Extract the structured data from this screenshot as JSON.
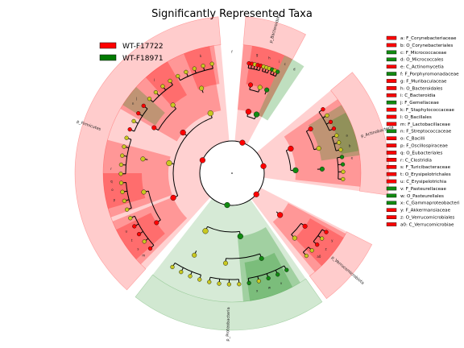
{
  "chart_data": {
    "type": "cladogram",
    "title": "Significantly Represented Taxa",
    "legend": [
      {
        "name": "WT-F17722",
        "color": "#ff0000"
      },
      {
        "name": "WT-F18971",
        "color": "#007a00"
      }
    ],
    "colors": {
      "red": "#ff0000",
      "green": "#118a11",
      "neutral": "#c8c820",
      "red_fill": "#ff0000",
      "green_fill": "#1a8c1a"
    },
    "taxa_key": [
      {
        "id": "a",
        "name": "F_Corynebacteriaceae",
        "group": "red"
      },
      {
        "id": "b",
        "name": "O_Corynebacteriales",
        "group": "red"
      },
      {
        "id": "c",
        "name": "F_Micrococcaceae",
        "group": "green"
      },
      {
        "id": "d",
        "name": "O_Micrococcales",
        "group": "green"
      },
      {
        "id": "e",
        "name": "C_Actinomycetia",
        "group": "red"
      },
      {
        "id": "f",
        "name": "F_Porphyromonadaceae",
        "group": "green"
      },
      {
        "id": "g",
        "name": "F_Muribaculaceae",
        "group": "red"
      },
      {
        "id": "h",
        "name": "O_Bacteroidales",
        "group": "red"
      },
      {
        "id": "i",
        "name": "C_Bacteroidia",
        "group": "red"
      },
      {
        "id": "j",
        "name": "F_Gemellaceae",
        "group": "green"
      },
      {
        "id": "k",
        "name": "F_Staphylococcaceae",
        "group": "red"
      },
      {
        "id": "l",
        "name": "O_Bacillales",
        "group": "red"
      },
      {
        "id": "m",
        "name": "F_Lactobacillaceae",
        "group": "red"
      },
      {
        "id": "n",
        "name": "F_Streptococcaceae",
        "group": "green"
      },
      {
        "id": "o",
        "name": "C_Bacilli",
        "group": "red"
      },
      {
        "id": "p",
        "name": "F_Oscillospiraceae",
        "group": "red"
      },
      {
        "id": "q",
        "name": "O_Eubacteriales",
        "group": "red"
      },
      {
        "id": "r",
        "name": "C_Clostridia",
        "group": "red"
      },
      {
        "id": "s",
        "name": "F_Turicibacteraceae",
        "group": "red"
      },
      {
        "id": "t",
        "name": "O_Erysipelotrichales",
        "group": "red"
      },
      {
        "id": "u",
        "name": "C_Erysipelotrichia",
        "group": "red"
      },
      {
        "id": "v",
        "name": "F_Pasteurellaceae",
        "group": "green"
      },
      {
        "id": "w",
        "name": "O_Pasteurellales",
        "group": "green"
      },
      {
        "id": "x",
        "name": "C_Gammaproteobacteri",
        "group": "green"
      },
      {
        "id": "y",
        "name": "F_Akkermansiaceae",
        "group": "red"
      },
      {
        "id": "z",
        "name": "O_Verrucomicrobiales",
        "group": "red"
      },
      {
        "id": "a0",
        "name": "C_Verrucomicrobiae",
        "group": "red"
      }
    ],
    "phyla": [
      {
        "label": "p_Bacteroidota",
        "group": "red",
        "start": 5,
        "end": 28
      },
      {
        "label": "p_Actinobacteria",
        "group": "red",
        "start": 50,
        "end": 98
      },
      {
        "label": "p_Verrucomicrobiota",
        "group": "red",
        "start": 117,
        "end": 143
      },
      {
        "label": "p_Proteobacteria",
        "group": "green",
        "start": 145,
        "end": 218
      },
      {
        "label": "p_Firmicutes",
        "group": "red",
        "start": 222,
        "end": 355
      }
    ],
    "clade_letters": [
      {
        "text": "a",
        "angle": 72
      },
      {
        "text": "b",
        "angle": 77
      },
      {
        "text": "c",
        "angle": 26
      },
      {
        "text": "d",
        "angle": 31
      },
      {
        "text": "e",
        "angle": 83
      },
      {
        "text": "f",
        "angle": 0
      },
      {
        "text": "g",
        "angle": 12
      },
      {
        "text": "h",
        "angle": 18
      },
      {
        "text": "i",
        "angle": 23
      },
      {
        "text": "j",
        "angle": 308
      },
      {
        "text": "k",
        "angle": 345
      },
      {
        "text": "l",
        "angle": 320
      },
      {
        "text": "m",
        "angle": 227
      },
      {
        "text": "n",
        "angle": 305
      },
      {
        "text": "o",
        "angle": 262
      },
      {
        "text": "p",
        "angle": 257
      },
      {
        "text": "q",
        "angle": 266
      },
      {
        "text": "r",
        "angle": 272
      },
      {
        "text": "s",
        "angle": 231
      },
      {
        "text": "t",
        "angle": 236
      },
      {
        "text": "u",
        "angle": 241
      },
      {
        "text": "v",
        "angle": 156
      },
      {
        "text": "w",
        "angle": 162
      },
      {
        "text": "x",
        "angle": 168
      },
      {
        "text": "y",
        "angle": 124
      },
      {
        "text": "z",
        "angle": 129
      },
      {
        "text": "a0",
        "angle": 134
      }
    ]
  }
}
